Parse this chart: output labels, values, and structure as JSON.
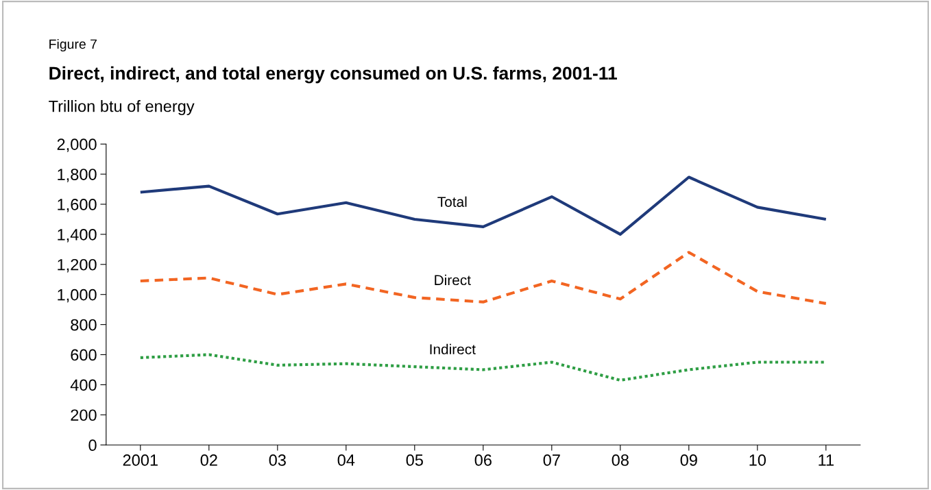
{
  "chart_data": {
    "type": "line",
    "title": "Direct, indirect, and total energy consumed on U.S. farms, 2001-11",
    "annotations": [
      "Figure 7"
    ],
    "ylabel": "Trillion btu of energy",
    "categories": [
      "2001",
      "02",
      "03",
      "04",
      "05",
      "06",
      "07",
      "08",
      "09",
      "10",
      "11"
    ],
    "series": [
      {
        "name": "Total",
        "color": "#1f3a7a",
        "line_style": "solid",
        "values": [
          1680,
          1720,
          1535,
          1610,
          1500,
          1450,
          1650,
          1400,
          1780,
          1580,
          1500
        ]
      },
      {
        "name": "Direct",
        "color": "#f26522",
        "line_style": "dashed",
        "values": [
          1090,
          1110,
          1000,
          1070,
          980,
          950,
          1090,
          970,
          1280,
          1020,
          940
        ]
      },
      {
        "name": "Indirect",
        "color": "#2e9e44",
        "line_style": "dotted",
        "values": [
          580,
          600,
          530,
          540,
          520,
          500,
          550,
          430,
          500,
          550,
          550
        ]
      }
    ],
    "ylim": [
      0,
      2000
    ],
    "yticks": [
      {
        "value": 0,
        "label": "0"
      },
      {
        "value": 200,
        "label": "200"
      },
      {
        "value": 400,
        "label": "400"
      },
      {
        "value": 600,
        "label": "600"
      },
      {
        "value": 800,
        "label": "800"
      },
      {
        "value": 1000,
        "label": "1,000"
      },
      {
        "value": 1200,
        "label": "1,200"
      },
      {
        "value": 1400,
        "label": "1,400"
      },
      {
        "value": 1600,
        "label": "1,600"
      },
      {
        "value": 1800,
        "label": "1,800"
      },
      {
        "value": 2000,
        "label": "2,000"
      }
    ],
    "grid": false,
    "legend": false
  }
}
